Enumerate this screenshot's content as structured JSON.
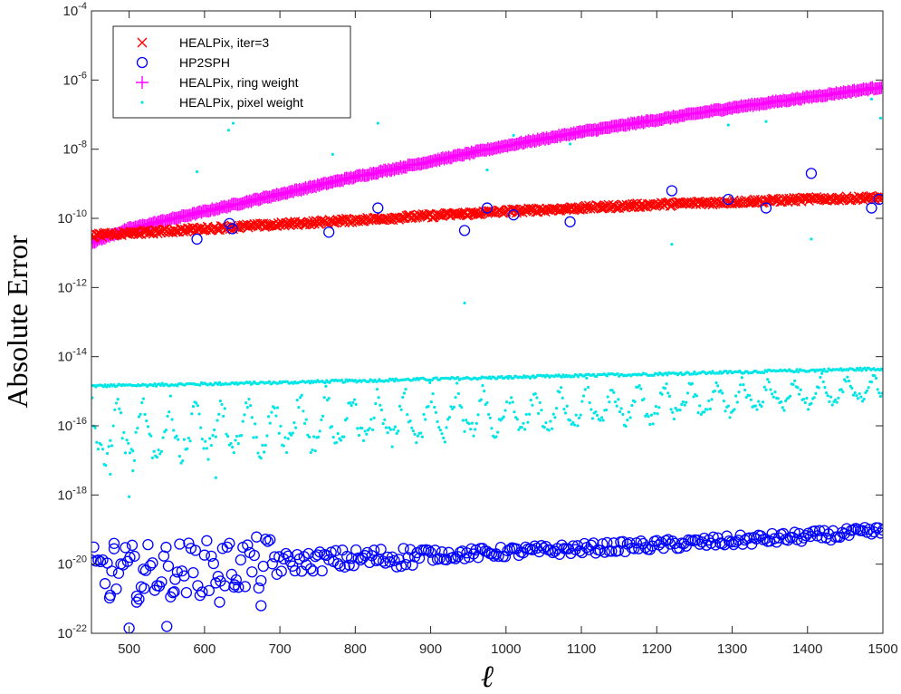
{
  "chart_data": {
    "type": "scatter",
    "title": "",
    "xlabel": "ℓ",
    "ylabel": "Absolute Error",
    "xlim": [
      450,
      1500
    ],
    "ylim_log10": [
      -22,
      -4
    ],
    "yscale": "log",
    "x_ticks": [
      500,
      600,
      700,
      800,
      900,
      1000,
      1100,
      1200,
      1300,
      1400,
      1500
    ],
    "y_tick_exponents": [
      -22,
      -20,
      -18,
      -16,
      -14,
      -12,
      -10,
      -8,
      -6,
      -4
    ],
    "grid": false,
    "legend_position": "top-left",
    "series": [
      {
        "name": "HEALPix, iter=3",
        "marker": "x",
        "color": "#ff0000",
        "trend_log10": [
          [
            450,
            -10.5
          ],
          [
            600,
            -10.3
          ],
          [
            800,
            -10.05
          ],
          [
            1000,
            -9.8
          ],
          [
            1200,
            -9.6
          ],
          [
            1400,
            -9.45
          ],
          [
            1500,
            -9.4
          ]
        ],
        "x_step": 2
      },
      {
        "name": "HP2SPH",
        "marker": "circle",
        "color": "#0000ff",
        "trend_log10": [
          [
            450,
            -20.3
          ],
          [
            600,
            -20.1
          ],
          [
            800,
            -19.85
          ],
          [
            1000,
            -19.65
          ],
          [
            1200,
            -19.45
          ],
          [
            1400,
            -19.2
          ],
          [
            1500,
            -19.05
          ]
        ],
        "outliers": [
          [
            590,
            -10.6
          ],
          [
            633,
            -10.15
          ],
          [
            637,
            -10.3
          ],
          [
            765,
            -10.4
          ],
          [
            830,
            -9.7
          ],
          [
            945,
            -10.35
          ],
          [
            975,
            -9.7
          ],
          [
            1010,
            -9.9
          ],
          [
            1085,
            -10.1
          ],
          [
            1220,
            -9.2
          ],
          [
            1295,
            -9.45
          ],
          [
            1345,
            -9.7
          ],
          [
            1405,
            -8.7
          ],
          [
            1485,
            -9.7
          ],
          [
            1495,
            -9.45
          ],
          [
            475,
            -20.9
          ],
          [
            480,
            -19.4
          ],
          [
            500,
            -21.85
          ],
          [
            510,
            -21.1
          ],
          [
            550,
            -21.8
          ],
          [
            620,
            -21.1
          ],
          [
            675,
            -21.2
          ],
          [
            520,
            -20.7
          ],
          [
            560,
            -20.8
          ],
          [
            640,
            -20.6
          ]
        ]
      },
      {
        "name": "HEALPix, ring weight",
        "marker": "plus",
        "color": "#ff00ff",
        "trend_log10": [
          [
            450,
            -10.7
          ],
          [
            500,
            -10.3
          ],
          [
            600,
            -9.8
          ],
          [
            700,
            -9.3
          ],
          [
            800,
            -8.8
          ],
          [
            900,
            -8.35
          ],
          [
            1000,
            -7.9
          ],
          [
            1100,
            -7.5
          ],
          [
            1200,
            -7.15
          ],
          [
            1300,
            -6.8
          ],
          [
            1400,
            -6.5
          ],
          [
            1500,
            -6.2
          ]
        ],
        "x_step": 2
      },
      {
        "name": "HEALPix, pixel weight",
        "marker": "dot",
        "color": "#00e5e5",
        "upper_log10": [
          [
            450,
            -14.85
          ],
          [
            700,
            -14.75
          ],
          [
            1000,
            -14.6
          ],
          [
            1200,
            -14.5
          ],
          [
            1500,
            -14.35
          ]
        ],
        "lower_log10": [
          [
            450,
            -17.3
          ],
          [
            700,
            -16.9
          ],
          [
            1000,
            -16.4
          ],
          [
            1200,
            -16.0
          ],
          [
            1500,
            -15.3
          ]
        ],
        "outliers": [
          [
            590,
            -8.65
          ],
          [
            632,
            -7.45
          ],
          [
            638,
            -7.25
          ],
          [
            770,
            -8.15
          ],
          [
            830,
            -7.25
          ],
          [
            945,
            -12.45
          ],
          [
            975,
            -8.6
          ],
          [
            1010,
            -7.6
          ],
          [
            1085,
            -7.85
          ],
          [
            1220,
            -10.75
          ],
          [
            1295,
            -7.3
          ],
          [
            1345,
            -7.2
          ],
          [
            1405,
            -10.6
          ],
          [
            1485,
            -6.55
          ],
          [
            1497,
            -7.1
          ],
          [
            475,
            -17.4
          ],
          [
            500,
            -18.05
          ],
          [
            505,
            -17.3
          ],
          [
            615,
            -17.5
          ]
        ]
      }
    ]
  }
}
